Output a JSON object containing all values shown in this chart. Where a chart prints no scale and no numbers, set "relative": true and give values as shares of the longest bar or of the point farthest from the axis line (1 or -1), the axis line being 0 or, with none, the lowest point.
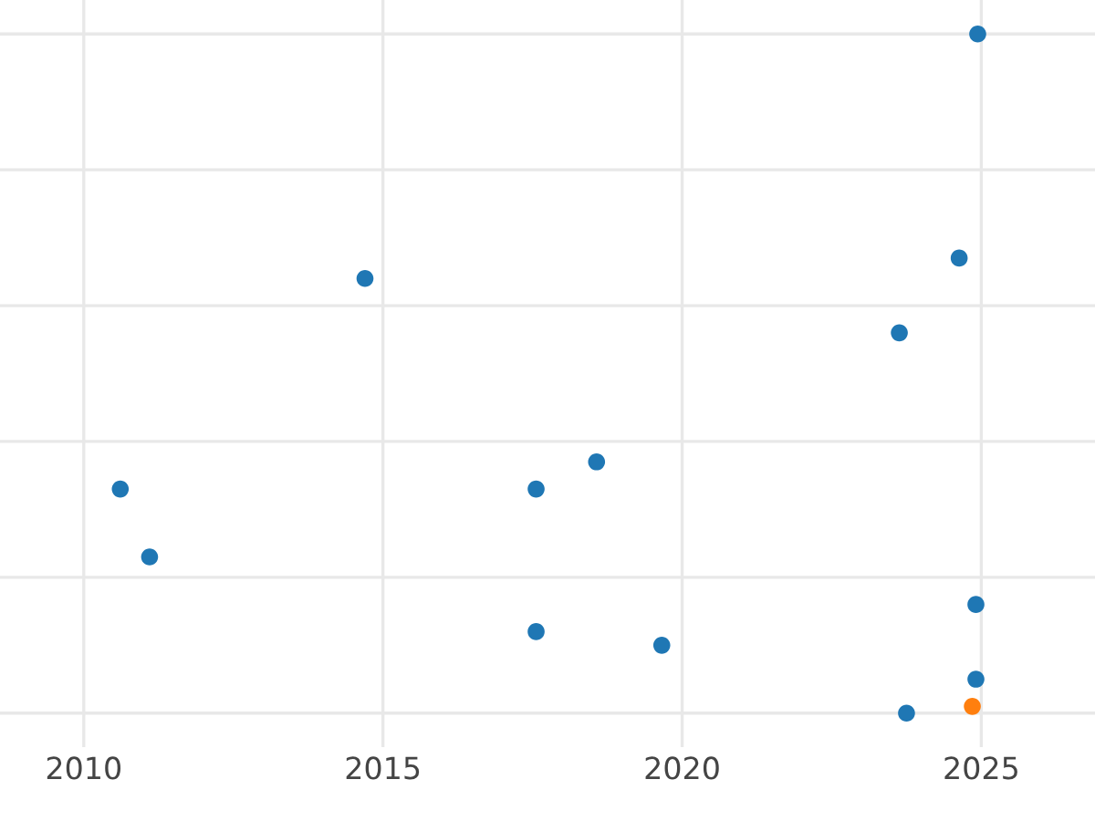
{
  "chart_data": {
    "type": "scatter",
    "relative": true,
    "grid": true,
    "marker": "circle",
    "tick_labels": "x",
    "xlim": [
      2008.6,
      2026.9
    ],
    "xticks": [
      2010,
      2015,
      2020,
      2025
    ],
    "series": [
      {
        "color": "#1f77b4",
        "x": [
          2024.94,
          2014.7,
          2024.63,
          2023.63,
          2010.61,
          2011.1,
          2017.56,
          2018.57,
          2024.91,
          2017.56,
          2019.66,
          2024.91,
          2023.75
        ],
        "values": [
          1.0,
          0.64,
          0.67,
          0.56,
          0.33,
          0.23,
          0.33,
          0.37,
          0.16,
          0.12,
          0.1,
          0.05,
          0.0
        ]
      },
      {
        "color": "#ff7f0e",
        "x": [
          2024.85
        ],
        "values": [
          0.01
        ]
      }
    ]
  }
}
